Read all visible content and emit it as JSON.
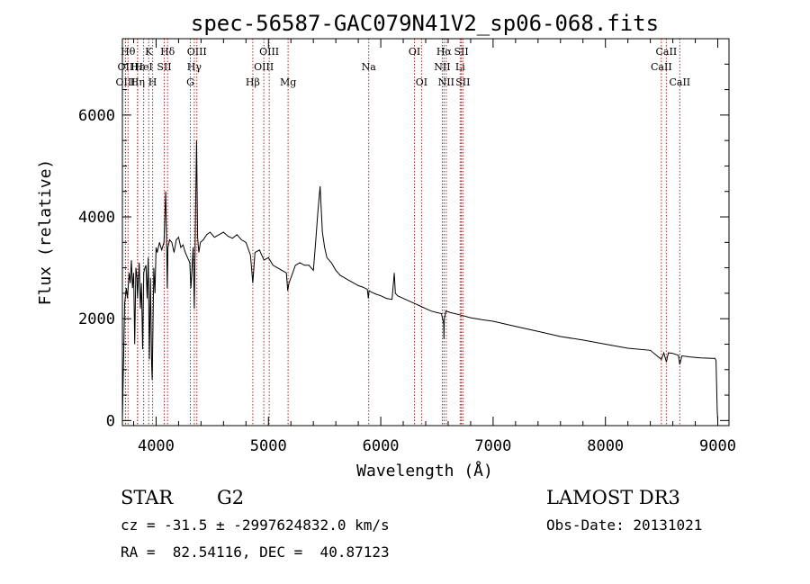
{
  "chart_data": {
    "type": "line",
    "title": "spec-56587-GAC079N41V2_sp06-068.fits",
    "xlabel": "Wavelength (Å)",
    "ylabel": "Flux (relative)",
    "xlim": [
      3700,
      9100
    ],
    "ylim": [
      -100,
      7500
    ],
    "x_ticks": [
      4000,
      5000,
      6000,
      7000,
      8000,
      9000
    ],
    "x_tick_labels": [
      "4000",
      "5000",
      "6000",
      "7000",
      "8000",
      "9000"
    ],
    "y_ticks": [
      0,
      2000,
      4000,
      6000
    ],
    "y_tick_labels": [
      "0",
      "2000",
      "4000",
      "6000"
    ],
    "grid": false,
    "series": [
      {
        "name": "flux",
        "x": [
          3700,
          3710,
          3720,
          3735,
          3745,
          3760,
          3770,
          3780,
          3790,
          3800,
          3810,
          3820,
          3830,
          3835,
          3850,
          3860,
          3870,
          3880,
          3890,
          3900,
          3910,
          3920,
          3930,
          3940,
          3950,
          3960,
          3965,
          3970,
          3980,
          3990,
          4000,
          4010,
          4030,
          4050,
          4070,
          4085,
          4095,
          4100,
          4105,
          4120,
          4140,
          4160,
          4180,
          4200,
          4220,
          4240,
          4260,
          4280,
          4300,
          4310,
          4320,
          4330,
          4340,
          4350,
          4360,
          4370,
          4380,
          4395,
          4420,
          4450,
          4480,
          4520,
          4560,
          4600,
          4640,
          4680,
          4720,
          4760,
          4800,
          4840,
          4861,
          4880,
          4920,
          4960,
          5000,
          5040,
          5080,
          5120,
          5160,
          5172,
          5183,
          5200,
          5240,
          5280,
          5320,
          5360,
          5400,
          5420,
          5440,
          5460,
          5480,
          5500,
          5520,
          5560,
          5600,
          5640,
          5680,
          5720,
          5760,
          5800,
          5840,
          5880,
          5890,
          5896,
          5920,
          5960,
          6000,
          6050,
          6100,
          6120,
          6130,
          6150,
          6200,
          6250,
          6300,
          6350,
          6400,
          6450,
          6500,
          6540,
          6560,
          6563,
          6566,
          6580,
          6620,
          6700,
          6800,
          6900,
          7000,
          7200,
          7400,
          7600,
          7800,
          8000,
          8200,
          8400,
          8498,
          8520,
          8542,
          8560,
          8600,
          8650,
          8662,
          8680,
          8750,
          8850,
          8950,
          8975,
          8985,
          8995,
          9000
        ],
        "y": [
          0,
          1100,
          2300,
          2600,
          2400,
          2900,
          2700,
          3150,
          2600,
          2900,
          1500,
          3000,
          2800,
          2400,
          3100,
          2200,
          2700,
          1400,
          2900,
          3000,
          3050,
          2400,
          3200,
          1200,
          2800,
          1100,
          800,
          1500,
          3000,
          2500,
          3400,
          3300,
          3500,
          3350,
          3500,
          4500,
          3300,
          2600,
          3400,
          3550,
          3500,
          3300,
          3550,
          3600,
          3400,
          3450,
          3300,
          3200,
          3100,
          2600,
          3000,
          3400,
          2200,
          3800,
          5500,
          3600,
          3300,
          3500,
          3550,
          3650,
          3700,
          3600,
          3650,
          3700,
          3620,
          3580,
          3650,
          3550,
          3500,
          3250,
          2700,
          3300,
          3350,
          3150,
          3200,
          3050,
          3000,
          2950,
          2900,
          2550,
          2700,
          2800,
          3050,
          3100,
          3050,
          3050,
          2950,
          3500,
          4100,
          4600,
          3700,
          3400,
          3200,
          3100,
          2950,
          2850,
          2800,
          2750,
          2700,
          2650,
          2620,
          2580,
          2400,
          2550,
          2520,
          2480,
          2450,
          2400,
          2380,
          2900,
          2500,
          2450,
          2400,
          2350,
          2300,
          2250,
          2200,
          2150,
          2120,
          2100,
          1900,
          1600,
          2000,
          2150,
          2120,
          2080,
          2020,
          1980,
          1950,
          1850,
          1750,
          1650,
          1580,
          1500,
          1420,
          1380,
          1200,
          1330,
          1150,
          1330,
          1320,
          1280,
          1100,
          1270,
          1250,
          1230,
          1220,
          1220,
          1180,
          200,
          0
        ]
      }
    ],
    "line_markers": [
      {
        "wavelength": 3727,
        "label": "OII",
        "row": 2
      },
      {
        "wavelength": 3728,
        "label": "OIII",
        "row": 3
      },
      {
        "wavelength": 3750,
        "label": "Hθ",
        "row": 1
      },
      {
        "wavelength": 3835,
        "label": "Hη",
        "row": 3
      },
      {
        "wavelength": 3835,
        "label": "Hε",
        "row": 2
      },
      {
        "wavelength": 3889,
        "label": "HeI",
        "row": 2
      },
      {
        "wavelength": 3934,
        "label": "K",
        "row": 1
      },
      {
        "wavelength": 3969,
        "label": "H",
        "row": 3
      },
      {
        "wavelength": 4072,
        "label": "SII",
        "row": 2
      },
      {
        "wavelength": 4102,
        "label": "Hδ",
        "row": 1
      },
      {
        "wavelength": 4305,
        "label": "G",
        "row": 3
      },
      {
        "wavelength": 4340,
        "label": "Hγ",
        "row": 2
      },
      {
        "wavelength": 4363,
        "label": "OIII",
        "row": 1
      },
      {
        "wavelength": 4861,
        "label": "Hβ",
        "row": 3
      },
      {
        "wavelength": 4959,
        "label": "OIII",
        "row": 2
      },
      {
        "wavelength": 5007,
        "label": "OIII",
        "row": 1
      },
      {
        "wavelength": 5175,
        "label": "Mg",
        "row": 3
      },
      {
        "wavelength": 5893,
        "label": "Na",
        "row": 2
      },
      {
        "wavelength": 6300,
        "label": "OI",
        "row": 1
      },
      {
        "wavelength": 6363,
        "label": "OI",
        "row": 3
      },
      {
        "wavelength": 6548,
        "label": "NII",
        "row": 2
      },
      {
        "wavelength": 6563,
        "label": "Hα",
        "row": 1
      },
      {
        "wavelength": 6583,
        "label": "NII",
        "row": 3
      },
      {
        "wavelength": 6707,
        "label": "Li",
        "row": 2
      },
      {
        "wavelength": 6717,
        "label": "SII",
        "row": 1
      },
      {
        "wavelength": 6731,
        "label": "SII",
        "row": 3
      },
      {
        "wavelength": 8498,
        "label": "CaII",
        "row": 2
      },
      {
        "wavelength": 8542,
        "label": "CaII",
        "row": 1
      },
      {
        "wavelength": 8662,
        "label": "CaII",
        "row": 3
      }
    ]
  },
  "info": {
    "object_class": "STAR",
    "subclass": "G2",
    "survey": "LAMOST DR3",
    "redshift_line": "cz = -31.5 ± -2997624832.0 km/s",
    "obs_date": "Obs-Date: 20131021",
    "coords": "RA =  82.54116, DEC =  40.87123"
  }
}
